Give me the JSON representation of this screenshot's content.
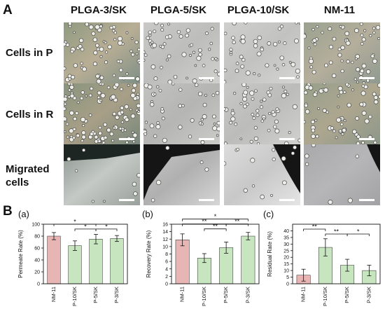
{
  "figure": {
    "panel_a_label": "A",
    "panel_b_label": "B",
    "columns": [
      "PLGA-3/SK",
      "PLGA-5/SK",
      "PLGA-10/SK",
      "NM-11"
    ],
    "rows": [
      {
        "lines": [
          "Cells in P"
        ]
      },
      {
        "lines": [
          "Cells in R"
        ]
      },
      {
        "lines": [
          "Migrated",
          "cells"
        ]
      }
    ]
  },
  "colors": {
    "nm_bar": "#e8b5b5",
    "sk_bar": "#c7e5bf",
    "bar_edge": "#222222"
  },
  "chart_data": [
    {
      "type": "bar",
      "panel": "(a)",
      "ylabel": "Permeate Rate (%)",
      "categories": [
        "NM-11",
        "P-10/SK",
        "P-5/SK",
        "P-3/SK"
      ],
      "values": [
        80,
        64,
        75,
        76
      ],
      "errors": [
        6,
        8,
        8,
        5
      ],
      "ylim": [
        0,
        100
      ],
      "yticks": [
        0,
        20,
        40,
        60,
        80,
        100
      ],
      "significance": [
        {
          "from": 0,
          "to": 2,
          "label": "*",
          "level": 1
        },
        {
          "from": 1,
          "to": 2,
          "label": "*",
          "level": 0
        },
        {
          "from": 2,
          "to": 3,
          "label": "*",
          "level": 0
        }
      ]
    },
    {
      "type": "bar",
      "panel": "(b)",
      "ylabel": "Recovery Rate (%)",
      "categories": [
        "NM-11",
        "P-10/SK",
        "P-5/SK",
        "P-3/SK"
      ],
      "values": [
        11.8,
        6.9,
        9.7,
        12.8
      ],
      "errors": [
        1.6,
        1.2,
        1.5,
        1.0
      ],
      "ylim": [
        0,
        16
      ],
      "yticks": [
        0,
        2,
        4,
        6,
        8,
        10,
        12,
        14,
        16
      ],
      "significance": [
        {
          "from": 0,
          "to": 3,
          "label": "*",
          "level": 2
        },
        {
          "from": 0,
          "to": 2,
          "label": "**",
          "level": 1
        },
        {
          "from": 2,
          "to": 3,
          "label": "**",
          "level": 1
        },
        {
          "from": 1,
          "to": 2,
          "label": "**",
          "level": 0
        }
      ]
    },
    {
      "type": "bar",
      "panel": "(c)",
      "ylabel": "Residual Rate (%)",
      "categories": [
        "NM-11",
        "P-10/SK",
        "P-5/SK",
        "P-3/SK"
      ],
      "values": [
        6.5,
        27.5,
        14,
        10
      ],
      "errors": [
        4.5,
        6.5,
        4.5,
        4
      ],
      "ylim": [
        0,
        45
      ],
      "yticks": [
        0,
        5,
        10,
        15,
        20,
        25,
        30,
        35,
        40
      ],
      "significance": [
        {
          "from": 0,
          "to": 1,
          "label": "**",
          "level": 1
        },
        {
          "from": 1,
          "to": 2,
          "label": "**",
          "level": 0
        },
        {
          "from": 2,
          "to": 3,
          "label": "*",
          "level": 0
        }
      ]
    }
  ]
}
